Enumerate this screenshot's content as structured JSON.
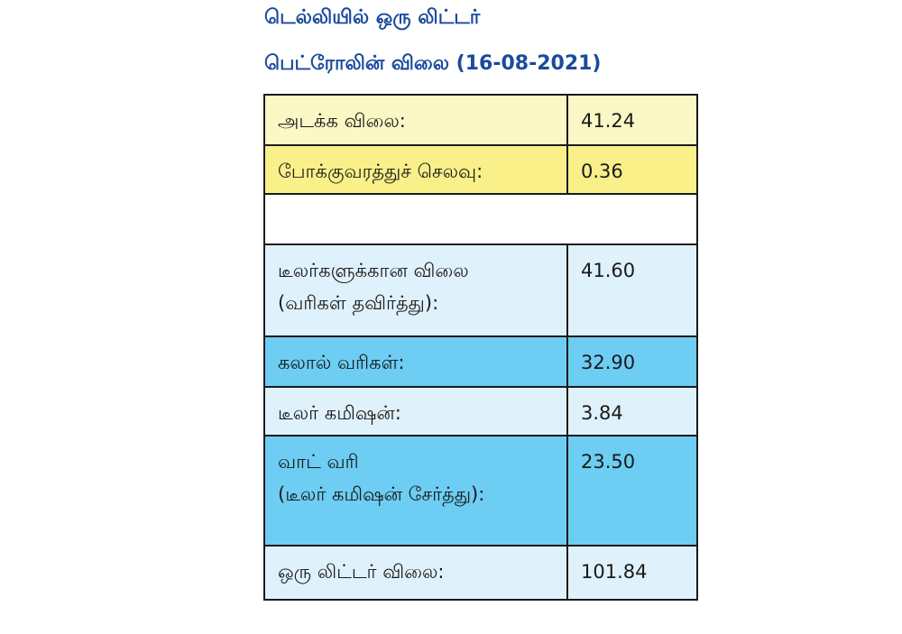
{
  "title": {
    "line1": "டெல்லியில் ஒரு லிட்டர்",
    "line2": "பெட்ரோலின் விலை (16-08-2021)"
  },
  "colors": {
    "title": "#1a4a9c",
    "row_light_yellow": "#fbf8c6",
    "row_yellow": "#f9f08a",
    "row_white": "#ffffff",
    "row_light_blue": "#dff1fb",
    "row_blue": "#6dcdf3",
    "border": "#1a1a1a"
  },
  "chart_data": {
    "type": "table",
    "title": "டெல்லியில் ஒரு லிட்டர் பெட்ரோலின் விலை (16-08-2021)",
    "rows": [
      {
        "label": [
          "அடக்க விலை:"
        ],
        "value": "41.24",
        "color": "#fbf8c6"
      },
      {
        "label": [
          "போக்குவரத்துச் செலவு:"
        ],
        "value": "0.36",
        "color": "#f9f08a"
      },
      {
        "label": [],
        "value": "",
        "color": "#ffffff",
        "empty": true
      },
      {
        "label": [
          "டீலர்களுக்கான விலை",
          "(வரிகள் தவிர்த்து):"
        ],
        "value": "41.60",
        "color": "#dff1fb"
      },
      {
        "label": [
          "கலால் வரிகள்:"
        ],
        "value": "32.90",
        "color": "#6dcdf3"
      },
      {
        "label": [
          "டீலர் கமிஷன்:"
        ],
        "value": "3.84",
        "color": "#dff1fb"
      },
      {
        "label": [
          "வாட் வரி",
          "(டீலர் கமிஷன் சேர்த்து):"
        ],
        "value": "23.50",
        "color": "#6dcdf3"
      },
      {
        "label": [
          "ஒரு லிட்டர் விலை:"
        ],
        "value": "101.84",
        "color": "#dff1fb"
      }
    ]
  }
}
